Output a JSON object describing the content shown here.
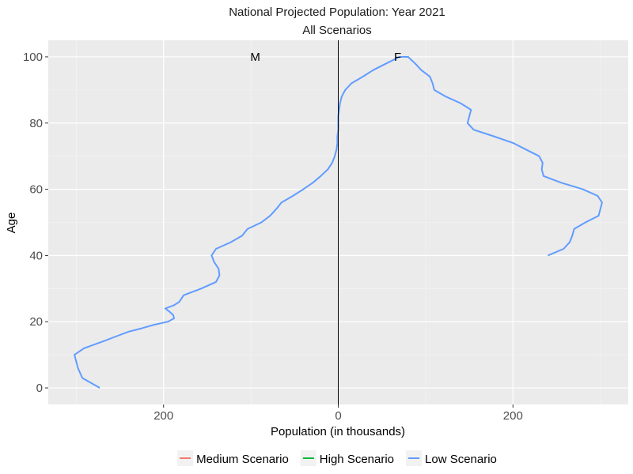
{
  "chart_data": {
    "type": "line",
    "title": "National Projected Population: Year 2021",
    "subtitle": "All Scenarios",
    "xlabel": "Population (in thousands)",
    "ylabel": "Age",
    "xlim": [
      -332,
      332
    ],
    "ylim": [
      -5,
      105
    ],
    "x_ticks": [
      -200,
      0,
      200
    ],
    "x_tick_labels": [
      "200",
      "0",
      "200"
    ],
    "y_ticks": [
      0,
      20,
      40,
      60,
      80,
      100
    ],
    "y_tick_labels": [
      "0",
      "20",
      "40",
      "60",
      "80",
      "100"
    ],
    "annotations": [
      {
        "text": "M",
        "x": -95,
        "y": 100
      },
      {
        "text": "F",
        "x": 68,
        "y": 100
      }
    ],
    "zero_line": true,
    "grid": true,
    "legend_position": "bottom",
    "series": [
      {
        "name": "Medium Scenario",
        "color": "#F8766D",
        "x": [],
        "y": []
      },
      {
        "name": "High Scenario",
        "color": "#00BA38",
        "x": [],
        "y": []
      },
      {
        "name": "Low Scenario",
        "color": "#619CFF",
        "x": [
          -273,
          -293,
          -298,
          -300,
          -302,
          -291,
          -270,
          -250,
          -240,
          -225,
          -212,
          -195,
          -188,
          -189,
          -193,
          -198,
          -188,
          -182,
          -177,
          -157,
          -140,
          -136,
          -137,
          -142,
          -145,
          -140,
          -123,
          -110,
          -104,
          -88,
          -78,
          -71,
          -65,
          -52,
          -40,
          -29,
          -20,
          -12,
          -7,
          -4,
          -2,
          -1,
          -1,
          0,
          0,
          0,
          1,
          2,
          4,
          8,
          15,
          28,
          40,
          55,
          70,
          80,
          88,
          95,
          105,
          108,
          110,
          123,
          140,
          152,
          150,
          148,
          155,
          178,
          200,
          215,
          230,
          234,
          233,
          235,
          255,
          280,
          297,
          302,
          300,
          298,
          283,
          270,
          268,
          265,
          258,
          240
        ],
        "y": [
          0,
          3,
          6,
          8,
          10,
          12,
          14,
          16,
          17,
          18,
          19,
          20,
          21,
          22,
          23,
          24,
          25,
          26,
          28,
          30,
          32,
          34,
          36,
          38,
          40,
          42,
          44,
          46,
          48,
          50,
          52,
          54,
          56,
          58,
          60,
          62,
          64,
          66,
          68,
          70,
          72,
          74,
          76,
          78,
          80,
          82,
          84,
          86,
          88,
          90,
          92,
          94,
          96,
          98,
          100,
          100,
          98,
          96,
          94,
          92,
          90,
          88,
          86,
          84,
          82,
          80,
          78,
          76,
          74,
          72,
          70,
          68,
          66,
          64,
          62,
          60,
          58,
          56,
          54,
          52,
          50,
          48,
          46,
          44,
          42,
          40
        ]
      }
    ]
  }
}
